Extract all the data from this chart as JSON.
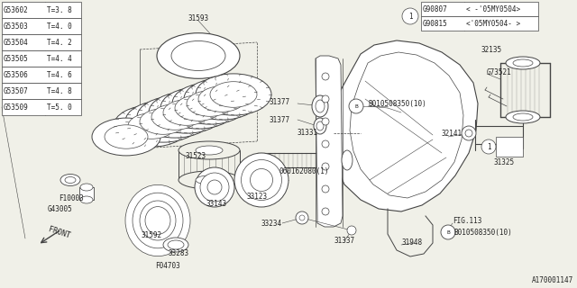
{
  "bg_color": "#f0f0e8",
  "line_color": "#444444",
  "diagram_id": "A170001147",
  "parts_table": {
    "col1": [
      "G53602",
      "G53503",
      "G53504",
      "G53505",
      "G53506",
      "G53507",
      "G53509"
    ],
    "col2": [
      "T=3. 8",
      "T=4. 0",
      "T=4. 2",
      "T=4. 4",
      "T=4. 6",
      "T=4. 8",
      "T=5. 0"
    ]
  },
  "ref_table": {
    "rows": [
      [
        "G90807",
        "< -'05MY0504>"
      ],
      [
        "G90815",
        "<'05MY0504- >"
      ]
    ]
  },
  "font_size": 5.5
}
